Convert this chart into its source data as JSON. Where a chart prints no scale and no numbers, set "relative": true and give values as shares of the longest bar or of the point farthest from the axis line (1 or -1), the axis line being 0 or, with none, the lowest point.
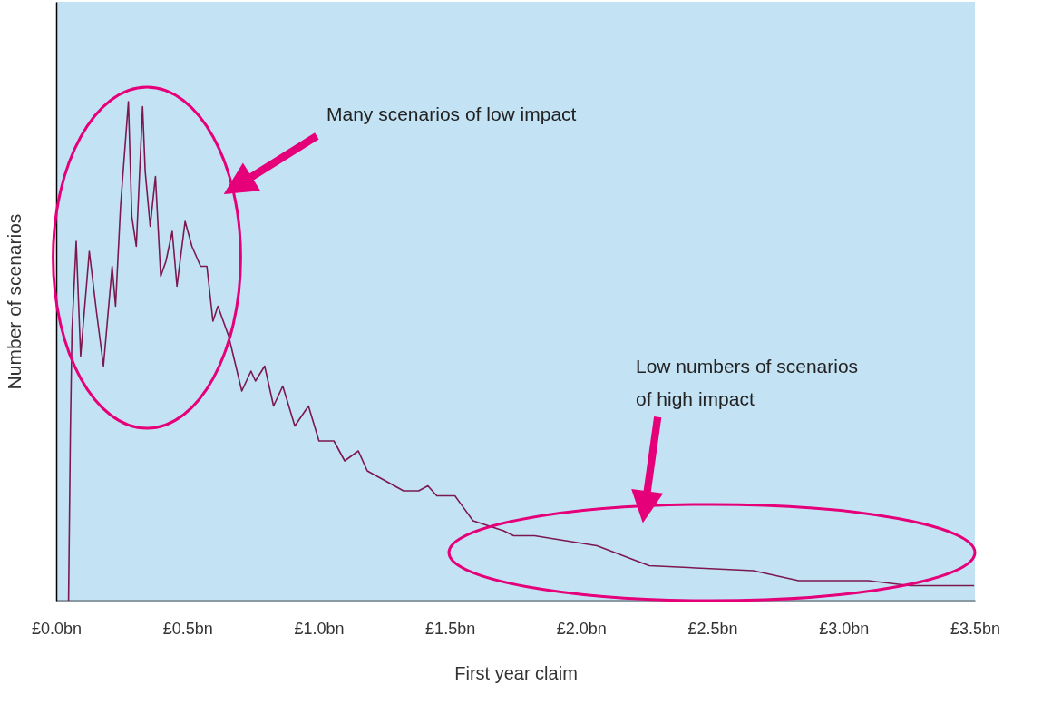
{
  "chart_data": {
    "type": "line",
    "relative": true,
    "xlabel": "First year claim",
    "ylabel": "Number of scenarios",
    "xlim": [
      0,
      3.5
    ],
    "xticks": [
      {
        "value": 0,
        "label": "£0.0bn"
      },
      {
        "value": 0.5,
        "label": "£0.5bn"
      },
      {
        "value": 1.0,
        "label": "£1.0bn"
      },
      {
        "value": 1.5,
        "label": "£1.5bn"
      },
      {
        "value": 2.0,
        "label": "£2.0bn"
      },
      {
        "value": 2.5,
        "label": "£2.5bn"
      },
      {
        "value": 3.0,
        "label": "£3.0bn"
      },
      {
        "value": 3.5,
        "label": "£3.5bn"
      }
    ],
    "x": [
      0.047,
      0.054,
      0.06,
      0.076,
      0.093,
      0.126,
      0.153,
      0.18,
      0.213,
      0.226,
      0.245,
      0.275,
      0.288,
      0.305,
      0.329,
      0.339,
      0.358,
      0.378,
      0.398,
      0.418,
      0.442,
      0.46,
      0.491,
      0.517,
      0.55,
      0.574,
      0.597,
      0.616,
      0.657,
      0.707,
      0.742,
      0.759,
      0.794,
      0.828,
      0.863,
      0.909,
      0.961,
      1.001,
      1.058,
      1.099,
      1.151,
      1.185,
      1.254,
      1.323,
      1.381,
      1.416,
      1.45,
      1.519,
      1.588,
      1.646,
      1.704,
      1.743,
      1.822,
      2.06,
      2.259,
      2.656,
      2.828,
      3.093,
      3.252,
      3.497
    ],
    "series": [
      {
        "color": "#7b1850",
        "values": [
          0,
          0.34,
          0.54,
          0.72,
          0.49,
          0.7,
          0.58,
          0.47,
          0.67,
          0.59,
          0.79,
          1,
          0.77,
          0.71,
          0.99,
          0.86,
          0.75,
          0.85,
          0.65,
          0.68,
          0.74,
          0.63,
          0.76,
          0.71,
          0.67,
          0.67,
          0.56,
          0.59,
          0.53,
          0.42,
          0.46,
          0.44,
          0.47,
          0.39,
          0.43,
          0.35,
          0.39,
          0.32,
          0.32,
          0.28,
          0.3,
          0.26,
          0.24,
          0.22,
          0.22,
          0.23,
          0.21,
          0.21,
          0.16,
          0.15,
          0.14,
          0.13,
          0.13,
          0.11,
          0.07,
          0.06,
          0.04,
          0.04,
          0.03,
          0.03
        ]
      }
    ],
    "annotations": [
      "Many scenarios of low impact",
      "Low numbers of scenarios\nof high impact"
    ],
    "grid": false,
    "marker": "none",
    "line_style": "solid"
  }
}
